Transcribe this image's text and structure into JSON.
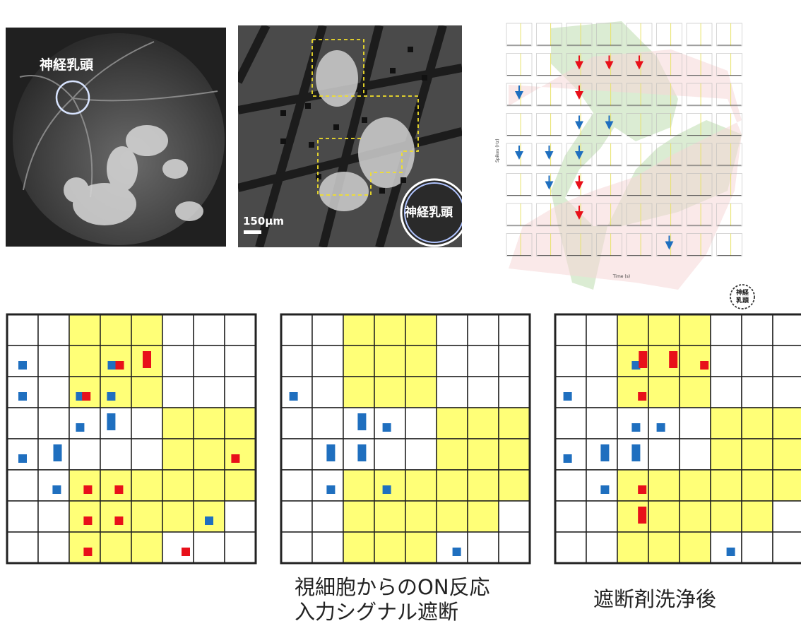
{
  "labels": {
    "optic_disc": "神経乳頭",
    "scale_bar": "150μm",
    "optic_disc_small_top": "神経",
    "optic_disc_small_bottom": "乳頭"
  },
  "captions": {
    "middle_line1": "視細胞からのON反応",
    "middle_line2": "入力シグナル遮断",
    "right": "遮断剤洗浄後"
  },
  "plot_panel": {
    "ylabel": "Spikes (Hz)",
    "xlabel": "Time (s)",
    "rows": 8,
    "cols": 8,
    "red_arrows": [
      [
        1,
        2
      ],
      [
        1,
        3
      ],
      [
        1,
        4
      ],
      [
        2,
        2
      ],
      [
        5,
        2
      ],
      [
        6,
        2
      ]
    ],
    "blue_arrows": [
      [
        2,
        0
      ],
      [
        3,
        2
      ],
      [
        3,
        3
      ],
      [
        4,
        0
      ],
      [
        4,
        1
      ],
      [
        4,
        2
      ],
      [
        5,
        1
      ],
      [
        7,
        5
      ]
    ]
  },
  "grids": [
    {
      "yellow": [
        [
          0,
          2
        ],
        [
          0,
          3
        ],
        [
          0,
          4
        ],
        [
          1,
          2
        ],
        [
          1,
          3
        ],
        [
          1,
          4
        ],
        [
          2,
          2
        ],
        [
          2,
          3
        ],
        [
          2,
          4
        ],
        [
          3,
          5
        ],
        [
          3,
          6
        ],
        [
          3,
          7
        ],
        [
          4,
          5
        ],
        [
          4,
          6
        ],
        [
          4,
          7
        ],
        [
          5,
          2
        ],
        [
          5,
          3
        ],
        [
          5,
          4
        ],
        [
          5,
          5
        ],
        [
          5,
          6
        ],
        [
          5,
          7
        ],
        [
          6,
          2
        ],
        [
          6,
          3
        ],
        [
          6,
          4
        ],
        [
          6,
          5
        ],
        [
          6,
          6
        ],
        [
          7,
          2
        ],
        [
          7,
          3
        ],
        [
          7,
          4
        ]
      ],
      "marks": [
        {
          "r": 1,
          "c": 0,
          "color": "blue",
          "size": "small"
        },
        {
          "r": 1,
          "c": 3,
          "color": "blue",
          "size": "small",
          "off": -0.25
        },
        {
          "r": 1,
          "c": 3,
          "color": "red",
          "size": "small",
          "off": 0.25
        },
        {
          "r": 1,
          "c": 4,
          "color": "red",
          "size": "tall"
        },
        {
          "r": 2,
          "c": 0,
          "color": "blue",
          "size": "small"
        },
        {
          "r": 2,
          "c": 2,
          "color": "blue",
          "size": "small",
          "off": -0.3
        },
        {
          "r": 2,
          "c": 2,
          "color": "red",
          "size": "small",
          "off": 0.1
        },
        {
          "r": 2,
          "c": 3,
          "color": "blue",
          "size": "small",
          "off": -0.3
        },
        {
          "r": 3,
          "c": 2,
          "color": "blue",
          "size": "small",
          "off": -0.3
        },
        {
          "r": 3,
          "c": 3,
          "color": "blue",
          "size": "tall",
          "off": -0.3
        },
        {
          "r": 4,
          "c": 0,
          "color": "blue",
          "size": "small"
        },
        {
          "r": 4,
          "c": 1,
          "color": "blue",
          "size": "tall",
          "off": 0.25
        },
        {
          "r": 4,
          "c": 7,
          "color": "red",
          "size": "small",
          "off": -0.3
        },
        {
          "r": 5,
          "c": 1,
          "color": "blue",
          "size": "small",
          "off": 0.2
        },
        {
          "r": 5,
          "c": 2,
          "color": "red",
          "size": "small",
          "off": 0.2
        },
        {
          "r": 5,
          "c": 3,
          "color": "red",
          "size": "small",
          "off": 0.2
        },
        {
          "r": 6,
          "c": 2,
          "color": "red",
          "size": "small",
          "off": 0.2
        },
        {
          "r": 6,
          "c": 3,
          "color": "red",
          "size": "small",
          "off": 0.2
        },
        {
          "r": 6,
          "c": 6,
          "color": "blue",
          "size": "small",
          "off": 0.0
        },
        {
          "r": 7,
          "c": 2,
          "color": "red",
          "size": "small",
          "off": 0.2
        },
        {
          "r": 7,
          "c": 5,
          "color": "red",
          "size": "small",
          "off": 0.5
        }
      ]
    },
    {
      "yellow": [
        [
          0,
          2
        ],
        [
          0,
          3
        ],
        [
          0,
          4
        ],
        [
          1,
          2
        ],
        [
          1,
          3
        ],
        [
          1,
          4
        ],
        [
          2,
          2
        ],
        [
          2,
          3
        ],
        [
          2,
          4
        ],
        [
          3,
          5
        ],
        [
          3,
          6
        ],
        [
          3,
          7
        ],
        [
          4,
          5
        ],
        [
          4,
          6
        ],
        [
          4,
          7
        ],
        [
          5,
          2
        ],
        [
          5,
          3
        ],
        [
          5,
          4
        ],
        [
          5,
          5
        ],
        [
          5,
          6
        ],
        [
          5,
          7
        ],
        [
          6,
          2
        ],
        [
          6,
          3
        ],
        [
          6,
          4
        ],
        [
          6,
          5
        ],
        [
          6,
          6
        ],
        [
          7,
          2
        ],
        [
          7,
          3
        ],
        [
          7,
          4
        ]
      ],
      "marks": [
        {
          "r": 2,
          "c": 0,
          "color": "blue",
          "size": "small",
          "off": -0.2
        },
        {
          "r": 3,
          "c": 2,
          "color": "blue",
          "size": "tall",
          "off": 0.2
        },
        {
          "r": 3,
          "c": 3,
          "color": "blue",
          "size": "small",
          "off": -0.2
        },
        {
          "r": 4,
          "c": 1,
          "color": "blue",
          "size": "tall",
          "off": 0.2
        },
        {
          "r": 4,
          "c": 2,
          "color": "blue",
          "size": "tall",
          "off": 0.2
        },
        {
          "r": 5,
          "c": 1,
          "color": "blue",
          "size": "small",
          "off": 0.2
        },
        {
          "r": 5,
          "c": 3,
          "color": "blue",
          "size": "small",
          "off": -0.2
        },
        {
          "r": 7,
          "c": 5,
          "color": "blue",
          "size": "small",
          "off": 0.3
        }
      ]
    },
    {
      "yellow": [
        [
          0,
          2
        ],
        [
          0,
          3
        ],
        [
          0,
          4
        ],
        [
          1,
          2
        ],
        [
          1,
          3
        ],
        [
          1,
          4
        ],
        [
          2,
          2
        ],
        [
          2,
          3
        ],
        [
          2,
          4
        ],
        [
          3,
          5
        ],
        [
          3,
          6
        ],
        [
          3,
          7
        ],
        [
          4,
          5
        ],
        [
          4,
          6
        ],
        [
          4,
          7
        ],
        [
          5,
          2
        ],
        [
          5,
          3
        ],
        [
          5,
          4
        ],
        [
          5,
          5
        ],
        [
          5,
          6
        ],
        [
          5,
          7
        ],
        [
          6,
          2
        ],
        [
          6,
          3
        ],
        [
          6,
          4
        ],
        [
          6,
          5
        ],
        [
          6,
          6
        ],
        [
          7,
          2
        ],
        [
          7,
          3
        ],
        [
          7,
          4
        ]
      ],
      "marks": [
        {
          "r": 1,
          "c": 2,
          "color": "blue",
          "size": "small",
          "off": 0.2
        },
        {
          "r": 1,
          "c": 2,
          "color": "red",
          "size": "tall",
          "off": 0.65
        },
        {
          "r": 1,
          "c": 3,
          "color": "red",
          "size": "tall",
          "off": 0.6
        },
        {
          "r": 1,
          "c": 4,
          "color": "red",
          "size": "small",
          "off": 0.6
        },
        {
          "r": 2,
          "c": 0,
          "color": "blue",
          "size": "small",
          "off": -0.2
        },
        {
          "r": 2,
          "c": 2,
          "color": "red",
          "size": "small",
          "off": 0.6
        },
        {
          "r": 3,
          "c": 2,
          "color": "blue",
          "size": "small",
          "off": 0.2
        },
        {
          "r": 3,
          "c": 3,
          "color": "blue",
          "size": "small",
          "off": -0.2
        },
        {
          "r": 4,
          "c": 0,
          "color": "blue",
          "size": "small",
          "off": -0.2
        },
        {
          "r": 4,
          "c": 1,
          "color": "blue",
          "size": "tall",
          "off": 0.2
        },
        {
          "r": 4,
          "c": 2,
          "color": "blue",
          "size": "tall",
          "off": 0.2
        },
        {
          "r": 5,
          "c": 1,
          "color": "blue",
          "size": "small",
          "off": 0.2
        },
        {
          "r": 5,
          "c": 2,
          "color": "red",
          "size": "small",
          "off": 0.6
        },
        {
          "r": 6,
          "c": 2,
          "color": "red",
          "size": "tall",
          "off": 0.6
        },
        {
          "r": 7,
          "c": 5,
          "color": "blue",
          "size": "small",
          "off": 0.3
        }
      ]
    }
  ],
  "colors": {
    "yellow": "#ffff77",
    "blue": "#1f6fbf",
    "red": "#e8101a",
    "dashed": "#f2e02a",
    "circle": "#d8e4ff"
  }
}
